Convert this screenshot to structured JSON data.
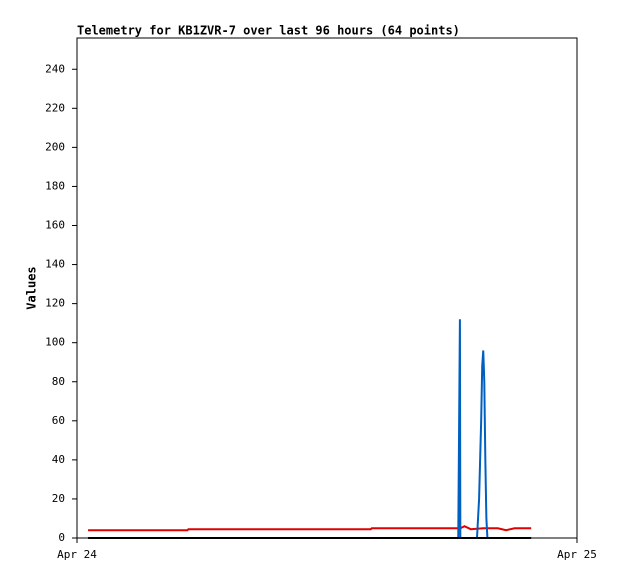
{
  "chart_data": {
    "type": "line",
    "title": "Telemetry for KB1ZVR-7 over last 96 hours (64 points)",
    "y_label": "Values",
    "xlim": [
      0,
      24
    ],
    "xticks": [
      {
        "value": 0,
        "label": "Apr 24"
      },
      {
        "value": 24,
        "label": "Apr 25"
      }
    ],
    "ylim": [
      0,
      256
    ],
    "yticks": [
      0,
      20,
      40,
      60,
      80,
      100,
      120,
      140,
      160,
      180,
      200,
      220,
      240
    ],
    "series": [
      {
        "color": "#e00000",
        "x": [
          0.53,
          5.3,
          5.35,
          14.1,
          14.15,
          18.4,
          18.6,
          18.9,
          19.5,
          20.2,
          20.6,
          21.0,
          21.8
        ],
        "values": [
          4,
          4,
          4.5,
          4.5,
          5,
          5,
          6,
          4.5,
          5,
          5,
          4,
          5,
          5
        ]
      },
      {
        "color": "#0060c0",
        "x": [
          18.3,
          18.38,
          18.4,
          18.45,
          19.2,
          19.3,
          19.4,
          19.45,
          19.5,
          19.55,
          19.6,
          19.65,
          19.7,
          19.75
        ],
        "values": [
          0,
          112,
          0,
          0,
          0,
          20,
          60,
          88,
          96,
          80,
          40,
          10,
          0,
          0
        ]
      },
      {
        "color": "#000000",
        "x": [
          0.53,
          21.8
        ],
        "values": [
          0,
          0
        ]
      }
    ]
  }
}
